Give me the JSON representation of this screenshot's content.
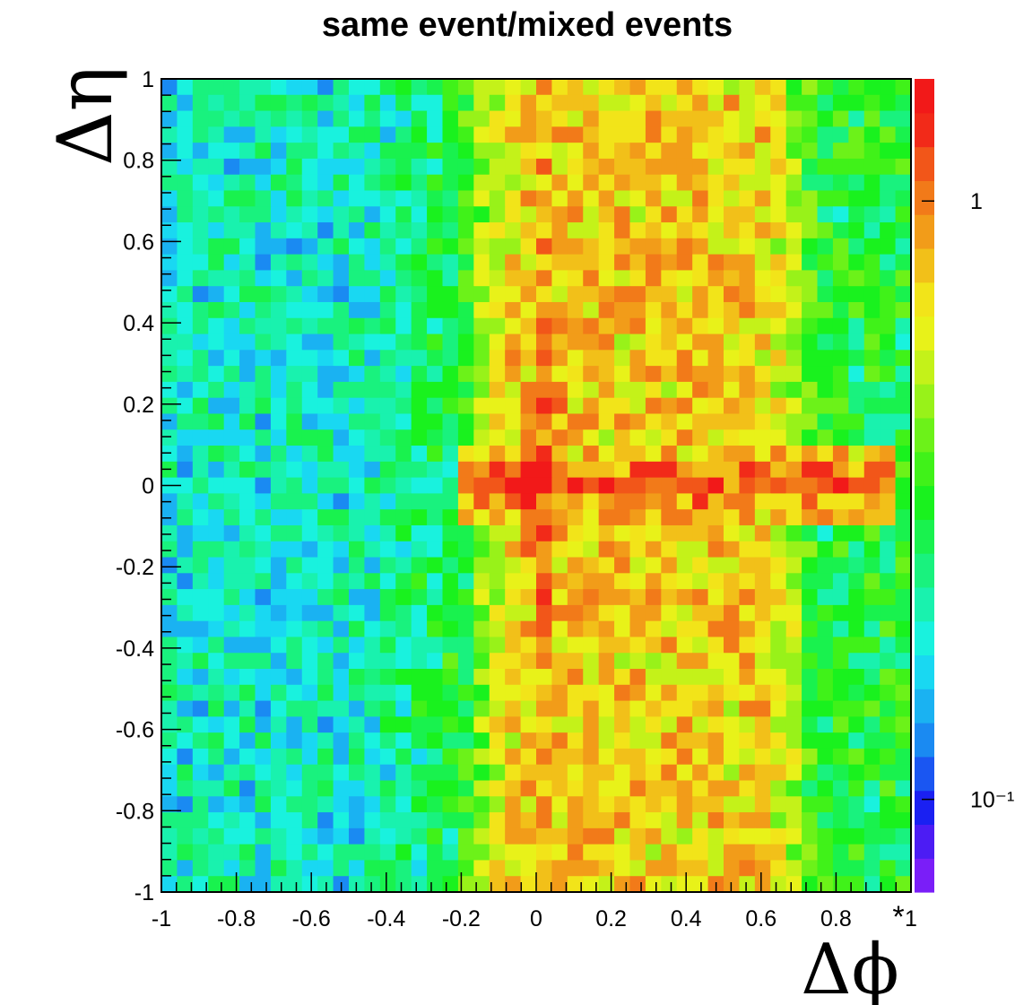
{
  "chart_data": {
    "type": "heatmap",
    "title": "same event/mixed events",
    "xlabel": "Δϕ",
    "ylabel": "Δη",
    "xlim": [
      -1,
      1
    ],
    "ylim": [
      -1,
      1
    ],
    "bins": {
      "nx": 48,
      "ny": 51
    },
    "x_ticks": [
      "-1",
      "-0.8",
      "-0.6",
      "-0.4",
      "-0.2",
      "0",
      "0.2",
      "0.4",
      "0.6",
      "0.8",
      "1"
    ],
    "y_ticks": [
      "1",
      "0.8",
      "0.6",
      "0.4",
      "0.2",
      "0",
      "-0.2",
      "-0.4",
      "-0.6",
      "-0.8",
      "-1"
    ],
    "z_scale": "log",
    "colorbar": {
      "labels": [
        "1",
        "10⁻¹"
      ],
      "label_values": [
        1,
        0.1
      ],
      "zlim": [
        0.07,
        1.6
      ],
      "colors": [
        "#7a1ef8",
        "#4c1cf4",
        "#1a20f2",
        "#1a56f2",
        "#1a8af2",
        "#1ab2f2",
        "#19d8f2",
        "#19f2de",
        "#19f2ae",
        "#19f27e",
        "#19f24e",
        "#19f21e",
        "#40f219",
        "#6cf219",
        "#98f219",
        "#c4f219",
        "#e8f219",
        "#f2e419",
        "#f2c019",
        "#f29c19",
        "#f27a19",
        "#f25619",
        "#f22a19",
        "#f21919"
      ]
    },
    "structure": {
      "baseline": 0.3,
      "left_region_value": 0.2,
      "left_region_xmax": -0.45,
      "peak": {
        "x": 0,
        "y": 0,
        "value": 1.5
      },
      "near_side_ridge": {
        "axis": "y",
        "x_center": 0.02,
        "x_halfwidth": 0.12,
        "value": 1.05
      },
      "phi_ridge": {
        "axis": "x",
        "y_center": 0,
        "y_halfwidth": 0.05,
        "x_range": [
          -0.2,
          0.95
        ],
        "value": 1.15
      },
      "central_x_band": {
        "x_range": [
          -0.2,
          0.75
        ],
        "value": 0.75
      },
      "fluctuation": 0.35
    },
    "corner_mark": "*"
  }
}
